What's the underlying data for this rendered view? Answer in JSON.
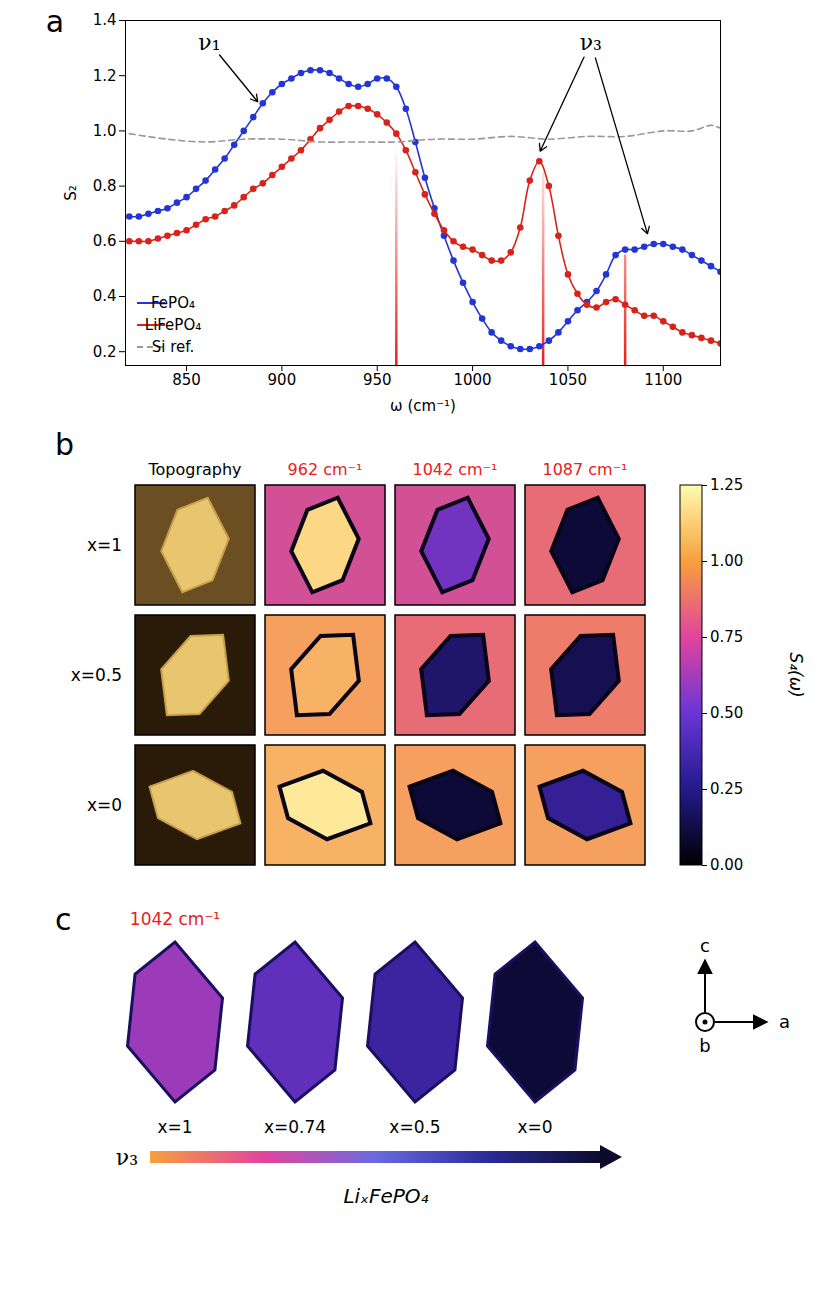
{
  "chart_data": {
    "type": "line",
    "panel": "a",
    "x_label": "ω (cm⁻¹)",
    "y_label": "S₂",
    "xlim": [
      818,
      1130
    ],
    "xticks": [
      850,
      900,
      950,
      1000,
      1050,
      1100
    ],
    "ylim": [
      0.15,
      1.4
    ],
    "yticks": [
      0.2,
      0.4,
      0.6,
      0.8,
      {
        "value": 1,
        "label": "1.0"
      },
      1.2,
      1.4
    ],
    "grid": false,
    "legend": "lower left",
    "series": [
      {
        "name": "FePO₄",
        "color": "#2435d6",
        "marker": "circle",
        "line_style": "solid",
        "x": [
          820,
          825,
          830,
          835,
          840,
          845,
          850,
          855,
          860,
          865,
          870,
          875,
          880,
          885,
          890,
          895,
          900,
          905,
          910,
          915,
          920,
          925,
          930,
          935,
          940,
          945,
          950,
          955,
          960,
          965,
          970,
          975,
          980,
          985,
          990,
          995,
          1000,
          1005,
          1010,
          1015,
          1020,
          1025,
          1030,
          1035,
          1040,
          1045,
          1050,
          1055,
          1060,
          1065,
          1070,
          1075,
          1080,
          1085,
          1090,
          1095,
          1100,
          1105,
          1110,
          1115,
          1120,
          1125,
          1130
        ],
        "values": [
          0.69,
          0.69,
          0.7,
          0.71,
          0.72,
          0.74,
          0.76,
          0.79,
          0.82,
          0.86,
          0.9,
          0.95,
          1.0,
          1.05,
          1.1,
          1.14,
          1.17,
          1.19,
          1.21,
          1.22,
          1.22,
          1.21,
          1.19,
          1.17,
          1.16,
          1.17,
          1.19,
          1.19,
          1.16,
          1.08,
          0.96,
          0.83,
          0.72,
          0.62,
          0.53,
          0.45,
          0.38,
          0.32,
          0.27,
          0.24,
          0.22,
          0.21,
          0.21,
          0.22,
          0.24,
          0.27,
          0.31,
          0.35,
          0.38,
          0.42,
          0.48,
          0.55,
          0.57,
          0.57,
          0.58,
          0.59,
          0.59,
          0.58,
          0.57,
          0.55,
          0.53,
          0.51,
          0.49
        ]
      },
      {
        "name": "LiFePO₄",
        "color": "#d8231b",
        "marker": "circle",
        "line_style": "solid",
        "x": [
          820,
          825,
          830,
          835,
          840,
          845,
          850,
          855,
          860,
          865,
          870,
          875,
          880,
          885,
          890,
          895,
          900,
          905,
          910,
          915,
          920,
          925,
          930,
          935,
          940,
          945,
          950,
          955,
          960,
          965,
          970,
          975,
          980,
          985,
          990,
          995,
          1000,
          1005,
          1010,
          1015,
          1020,
          1025,
          1030,
          1035,
          1040,
          1045,
          1050,
          1055,
          1060,
          1065,
          1070,
          1075,
          1080,
          1085,
          1090,
          1095,
          1100,
          1105,
          1110,
          1115,
          1120,
          1125,
          1130
        ],
        "values": [
          0.6,
          0.6,
          0.6,
          0.61,
          0.62,
          0.63,
          0.64,
          0.66,
          0.68,
          0.69,
          0.71,
          0.73,
          0.76,
          0.79,
          0.81,
          0.84,
          0.87,
          0.9,
          0.93,
          0.97,
          1.01,
          1.04,
          1.07,
          1.09,
          1.09,
          1.08,
          1.06,
          1.03,
          0.99,
          0.93,
          0.85,
          0.77,
          0.7,
          0.64,
          0.6,
          0.58,
          0.57,
          0.55,
          0.53,
          0.53,
          0.56,
          0.65,
          0.82,
          0.89,
          0.8,
          0.62,
          0.48,
          0.41,
          0.37,
          0.36,
          0.38,
          0.39,
          0.37,
          0.35,
          0.33,
          0.33,
          0.31,
          0.29,
          0.27,
          0.26,
          0.25,
          0.24,
          0.23
        ]
      },
      {
        "name": "Si ref.",
        "color": "#999999",
        "marker": "none",
        "line_style": "dashed",
        "x": [
          820,
          840,
          860,
          880,
          900,
          920,
          940,
          960,
          980,
          1000,
          1020,
          1040,
          1060,
          1080,
          1100,
          1115,
          1125,
          1130
        ],
        "values": [
          0.99,
          0.97,
          0.96,
          0.97,
          0.97,
          0.96,
          0.96,
          0.96,
          0.97,
          0.97,
          0.98,
          0.97,
          0.98,
          0.98,
          1.0,
          1.0,
          1.02,
          1.01
        ]
      }
    ],
    "vertical_lines": {
      "color": "#e8201a",
      "x": [
        960,
        1037,
        1080
      ],
      "top": [
        0.95,
        0.85,
        0.55
      ]
    },
    "annotations": [
      {
        "text": "ν₁",
        "x": 862,
        "y": 1.32,
        "arrows": [
          {
            "x": 888,
            "y": 1.1
          }
        ]
      },
      {
        "text": "ν₃",
        "x": 1062,
        "y": 1.32,
        "arrows": [
          {
            "x": 1035,
            "y": 0.92
          },
          {
            "x": 1092,
            "y": 0.62
          }
        ]
      }
    ]
  },
  "panel_b": {
    "panel": "b",
    "columns": [
      {
        "label": "Topography",
        "color": "#000000"
      },
      {
        "label": "962 cm⁻¹",
        "color": "#e8201a"
      },
      {
        "label": "1042 cm⁻¹",
        "color": "#e8201a"
      },
      {
        "label": "1087 cm⁻¹",
        "color": "#e8201a"
      }
    ],
    "row_labels": [
      "x=1",
      "x=0.5",
      "x=0"
    ],
    "maps": [
      [
        {
          "particle": 1.15,
          "background": 0.75
        },
        {
          "particle": 0.5,
          "background": 0.75
        },
        {
          "particle": 0.1,
          "background": 0.85
        }
      ],
      [
        {
          "particle": 1.05,
          "background": 1.0
        },
        {
          "particle": 0.2,
          "background": 0.85
        },
        {
          "particle": 0.15,
          "background": 0.9
        }
      ],
      [
        {
          "particle": 1.2,
          "background": 1.05
        },
        {
          "particle": 0.1,
          "background": 1.0
        },
        {
          "particle": 0.3,
          "background": 1.0
        }
      ]
    ],
    "colorbar": {
      "label": "S₄(ω)",
      "range": [
        0,
        1.25
      ],
      "ticks": [
        {
          "value": 0,
          "label": "0.00"
        },
        {
          "value": 0.25,
          "label": "0.25"
        },
        {
          "value": 0.5,
          "label": "0.50"
        },
        {
          "value": 0.75,
          "label": "0.75"
        },
        {
          "value": 1,
          "label": "1.00"
        },
        {
          "value": 1.25,
          "label": "1.25"
        }
      ]
    }
  },
  "panel_c": {
    "panel": "c",
    "heading": {
      "text": "1042 cm⁻¹",
      "color": "#e8201a"
    },
    "particles": [
      {
        "label": "x=1",
        "particle": 0.6
      },
      {
        "label": "x=0.74",
        "particle": 0.45
      },
      {
        "label": "x=0.5",
        "particle": 0.33
      },
      {
        "label": "x=0",
        "particle": 0.1
      }
    ],
    "axes": {
      "up": "c",
      "right": "a",
      "out": "b"
    },
    "arrow_label": "ν₃",
    "caption": "LiₓFePO₄"
  }
}
